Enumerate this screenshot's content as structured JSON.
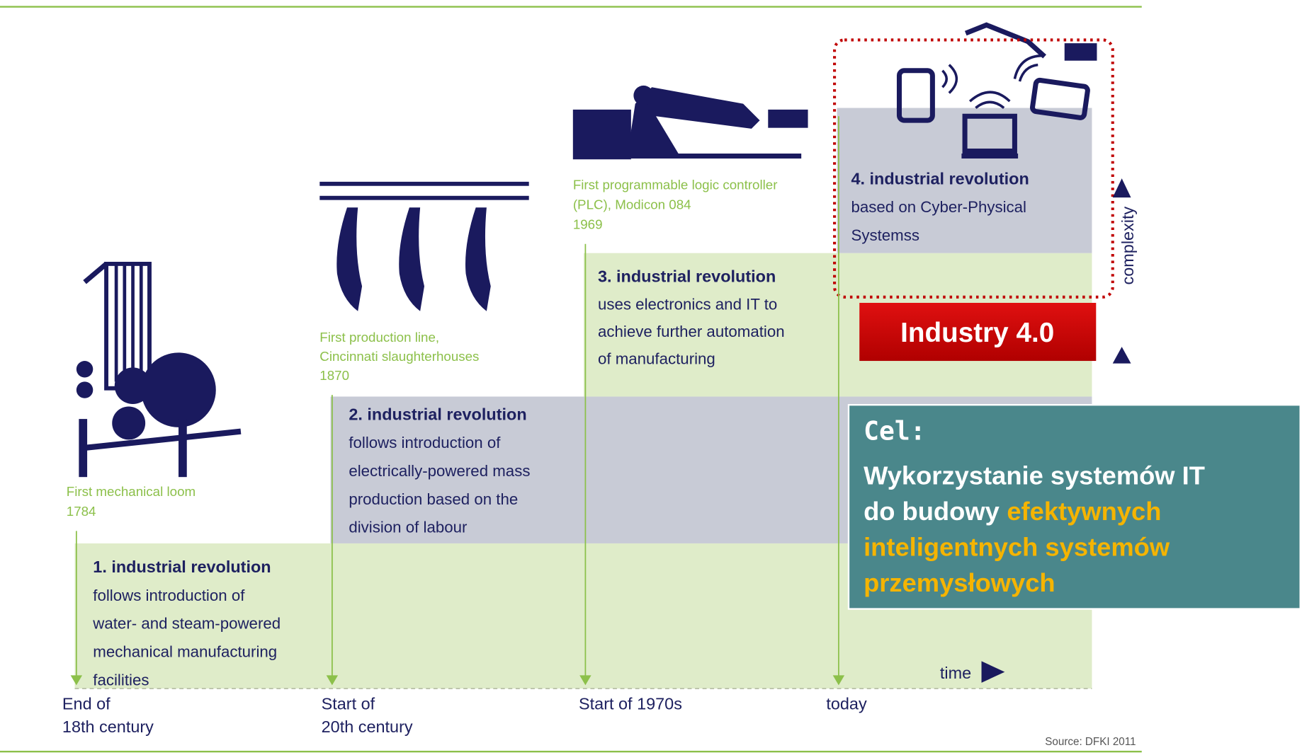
{
  "revolutions": [
    {
      "milestone": [
        "First mechanical loom",
        "1784"
      ],
      "title": "1. industrial revolution",
      "description": [
        "follows introduction of",
        "water- and steam-powered",
        "mechanical manufacturing",
        "facilities"
      ],
      "time": [
        "End of",
        "18th century"
      ]
    },
    {
      "milestone": [
        "First production line,",
        "Cincinnati slaughterhouses",
        "1870"
      ],
      "title": "2. industrial revolution",
      "description": [
        "follows introduction of",
        "electrically-powered mass",
        "production based on the",
        "division of labour"
      ],
      "time": [
        "Start of",
        "20th century"
      ]
    },
    {
      "milestone": [
        "First programmable logic controller",
        "(PLC), Modicon 084",
        "1969"
      ],
      "title": "3. industrial revolution",
      "description": [
        "uses electronics and IT to",
        "achieve further automation",
        "of manufacturing"
      ],
      "time": [
        "Start of 1970s"
      ]
    },
    {
      "title": "4. industrial revolution",
      "description": [
        "based on Cyber-Physical",
        "Systemss"
      ],
      "time": [
        "today"
      ]
    }
  ],
  "axis_labels": {
    "time": "time",
    "complexity": "complexity"
  },
  "industry_label": "Industry 4.0",
  "goal": {
    "heading": "Cel:",
    "lines": [
      {
        "plain": "Wykorzystanie systemów IT"
      },
      {
        "plain": "do budowy",
        "highlight": "efektywnych"
      },
      {
        "highlight": "inteligentnych systemów"
      },
      {
        "highlight": "przemysłowych"
      }
    ]
  },
  "source": "Source: DFKI 2011"
}
